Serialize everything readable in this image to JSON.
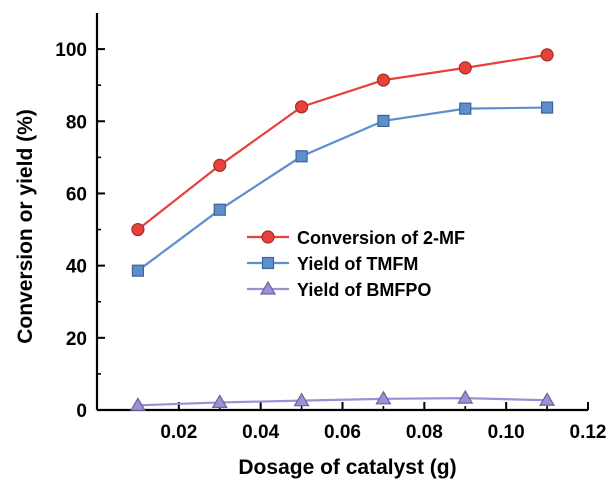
{
  "chart_data": {
    "type": "line",
    "xlabel": "Dosage of catalyst (g)",
    "ylabel": "Conversion or yield (%)",
    "xlim": [
      0,
      0.12
    ],
    "ylim": [
      0,
      110
    ],
    "x": [
      0.01,
      0.03,
      0.05,
      0.07,
      0.09,
      0.11
    ],
    "x_ticks": [
      {
        "value": 0.02,
        "label": "0.02"
      },
      {
        "value": 0.04,
        "label": "0.04"
      },
      {
        "value": 0.06,
        "label": "0.06"
      },
      {
        "value": 0.08,
        "label": "0.08"
      },
      {
        "value": 0.1,
        "label": "0.10"
      },
      {
        "value": 0.12,
        "label": "0.12"
      }
    ],
    "y_ticks": [
      {
        "value": 0,
        "label": "0"
      },
      {
        "value": 20,
        "label": "20"
      },
      {
        "value": 40,
        "label": "40"
      },
      {
        "value": 60,
        "label": "60"
      },
      {
        "value": 80,
        "label": "80"
      },
      {
        "value": 100,
        "label": "100"
      }
    ],
    "grid": false,
    "legend_position": "center-right",
    "series": [
      {
        "name": "Conversion of 2-MF",
        "marker": "circle",
        "color": "#e8403a",
        "values": [
          50.0,
          67.8,
          84.0,
          91.4,
          94.8,
          98.4
        ]
      },
      {
        "name": "Yield of TMFM",
        "marker": "square",
        "color": "#5b8fd0",
        "values": [
          38.6,
          55.5,
          70.3,
          80.1,
          83.5,
          83.8
        ]
      },
      {
        "name": "Yield of BMFPO",
        "marker": "triangle",
        "color": "#9d8fd6",
        "values": [
          1.3,
          2.1,
          2.6,
          3.1,
          3.3,
          2.7
        ]
      }
    ]
  }
}
